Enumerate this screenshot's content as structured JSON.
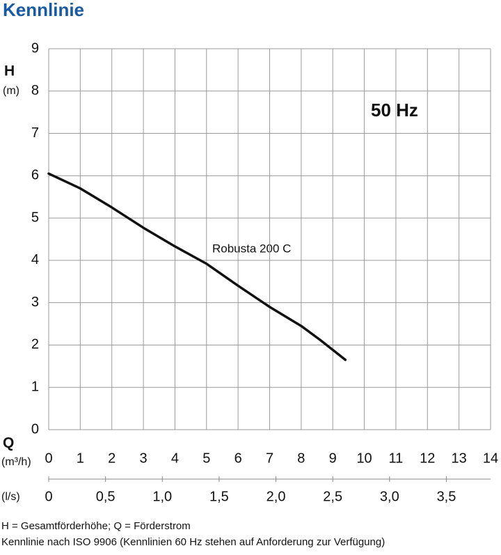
{
  "chart_data": {
    "type": "line",
    "title": "Kennlinie",
    "y_label": "H",
    "y_unit": "(m)",
    "x_label": "Q",
    "x_unit": "(m³/h)",
    "x2_unit": "(l/s)",
    "annotation": "50 Hz",
    "x": [
      0,
      1,
      2,
      3,
      4,
      5,
      6,
      7,
      8,
      8.6,
      9.4
    ],
    "series": [
      {
        "name": "Robusta 200 C",
        "color": "#111111",
        "values": [
          6.05,
          5.7,
          5.25,
          4.77,
          4.33,
          3.92,
          3.4,
          2.9,
          2.45,
          2.12,
          1.65
        ]
      }
    ],
    "xlim": [
      0,
      14
    ],
    "xticks": [
      0,
      1,
      2,
      3,
      4,
      5,
      6,
      7,
      8,
      9,
      10,
      11,
      12,
      13,
      14
    ],
    "ylim": [
      0,
      9
    ],
    "yticks": [
      0,
      1,
      2,
      3,
      4,
      5,
      6,
      7,
      8,
      9
    ],
    "x2lim": [
      0,
      3.889
    ],
    "x2ticks": [
      0,
      {
        "value": 0.5,
        "label": "0,5"
      },
      {
        "value": 1,
        "label": "1,0"
      },
      {
        "value": 1.5,
        "label": "1,5"
      },
      {
        "value": 2,
        "label": "2,0"
      },
      {
        "value": 2.5,
        "label": "2,5"
      },
      {
        "value": 3,
        "label": "3,0"
      },
      {
        "value": 3.5,
        "label": "3,5"
      }
    ],
    "grid": true
  },
  "notes": [
    "H = Gesamtförderhöhe; Q = Förderstrom",
    "Kennlinie nach ISO 9906 (Kennlinien 60 Hz stehen auf Anforderung zur Verfügung)"
  ]
}
